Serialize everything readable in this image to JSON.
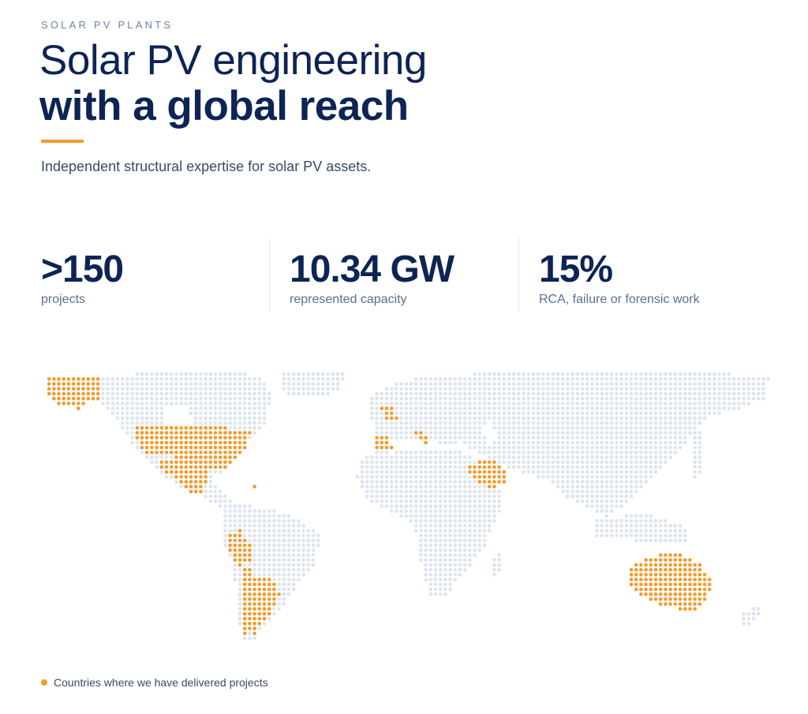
{
  "header": {
    "eyebrow": "SOLAR PV PLANTS",
    "headline_light": "Solar PV engineering",
    "headline_bold": "with a global reach",
    "subtitle": "Independent structural expertise for solar PV assets."
  },
  "stats": [
    {
      "value": ">150",
      "label": "projects"
    },
    {
      "value": "10.34 GW",
      "label": "represented capacity"
    },
    {
      "value": "15%",
      "label": "RCA, failure or forensic work"
    }
  ],
  "map": {
    "land_color": "#dde4ee",
    "highlight_color": "#f39a2b",
    "highlighted_regions": [
      "Alaska",
      "United States",
      "Mexico",
      "Puerto Rico",
      "Peru",
      "Chile",
      "Argentina",
      "United Kingdom",
      "Spain",
      "Italy",
      "Saudi Arabia",
      "Australia"
    ]
  },
  "legend": {
    "label": "Countries where we have delivered projects",
    "swatch_color": "#f39a2b"
  }
}
